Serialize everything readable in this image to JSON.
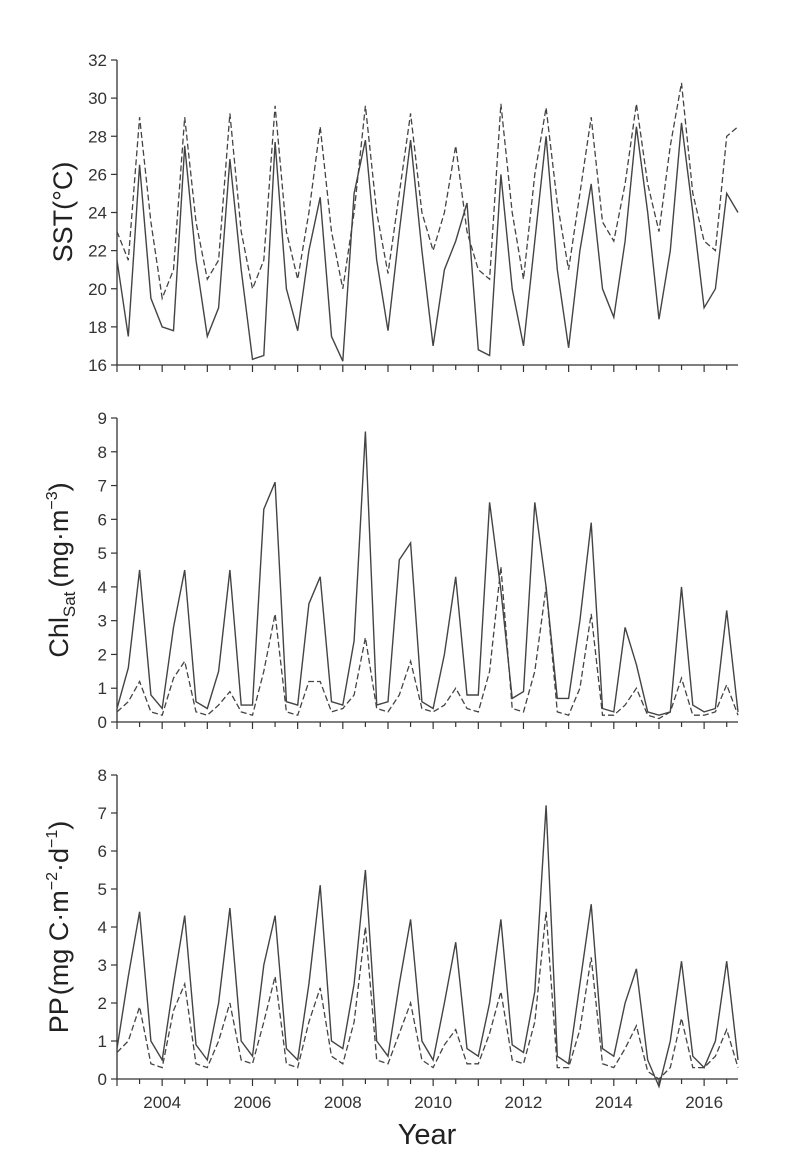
{
  "chart_data": [
    {
      "type": "line",
      "ylabel": "SST(°C)",
      "ylim": [
        16,
        32
      ],
      "yticks": [
        16,
        18,
        20,
        22,
        24,
        26,
        28,
        30,
        32
      ],
      "x_start": 2003.0,
      "x_step": 0.25,
      "series": [
        {
          "name": "solid",
          "style": "solid",
          "values": [
            21.5,
            17.5,
            26.5,
            19.5,
            18.0,
            17.8,
            27.5,
            21.5,
            17.5,
            19.0,
            26.8,
            21.0,
            16.3,
            16.5,
            27.7,
            20.0,
            17.8,
            22.0,
            24.8,
            17.5,
            16.2,
            25.0,
            27.8,
            21.5,
            17.8,
            23.0,
            27.8,
            22.0,
            17.0,
            21.0,
            22.5,
            24.5,
            16.8,
            16.5,
            26.0,
            20.0,
            17.0,
            22.5,
            28.0,
            21.0,
            16.9,
            22.0,
            25.5,
            20.0,
            18.5,
            22.5,
            28.5,
            24.0,
            18.4,
            22.0,
            28.7,
            24.0,
            19.0,
            20.0,
            25.0,
            24.0
          ]
        },
        {
          "name": "dashed",
          "style": "dashed",
          "values": [
            23.0,
            21.5,
            29.0,
            23.5,
            19.5,
            21.0,
            29.0,
            23.5,
            20.5,
            21.5,
            29.2,
            23.0,
            20.0,
            21.5,
            29.6,
            23.0,
            20.5,
            24.0,
            28.5,
            23.0,
            20.0,
            24.0,
            29.6,
            24.0,
            20.8,
            25.0,
            29.2,
            24.0,
            22.0,
            24.0,
            27.5,
            23.0,
            21.0,
            20.5,
            29.7,
            24.0,
            20.5,
            26.0,
            29.5,
            24.5,
            21.0,
            25.0,
            29.0,
            23.5,
            22.5,
            25.5,
            29.7,
            25.5,
            23.0,
            27.5,
            30.8,
            25.0,
            22.5,
            22.0,
            28.0,
            28.5
          ]
        }
      ]
    },
    {
      "type": "line",
      "ylabel_main": "Chl",
      "ylabel_sub": "Sat",
      "ylabel_unit": "(mg·m",
      "ylabel_sup": "−3",
      "ylabel_close": ")",
      "ylim": [
        0,
        9
      ],
      "yticks": [
        0,
        1,
        2,
        3,
        4,
        5,
        6,
        7,
        8,
        9
      ],
      "x_start": 2003.0,
      "x_step": 0.25,
      "series": [
        {
          "name": "solid",
          "style": "solid",
          "values": [
            0.4,
            1.6,
            4.5,
            0.8,
            0.4,
            2.8,
            4.5,
            0.6,
            0.4,
            1.5,
            4.5,
            0.5,
            0.5,
            6.3,
            7.1,
            0.6,
            0.5,
            3.5,
            4.3,
            0.6,
            0.5,
            2.4,
            8.6,
            0.5,
            0.6,
            4.8,
            5.3,
            0.6,
            0.4,
            2.0,
            4.3,
            0.8,
            0.8,
            6.5,
            3.9,
            0.7,
            0.9,
            6.5,
            4.0,
            0.7,
            0.7,
            3.0,
            5.9,
            0.4,
            0.3,
            2.8,
            1.7,
            0.3,
            0.2,
            0.3,
            4.0,
            0.5,
            0.3,
            0.4,
            3.3,
            0.3
          ]
        },
        {
          "name": "dashed",
          "style": "dashed",
          "values": [
            0.3,
            0.6,
            1.2,
            0.3,
            0.2,
            1.3,
            1.8,
            0.3,
            0.2,
            0.5,
            0.9,
            0.3,
            0.2,
            1.5,
            3.2,
            0.3,
            0.2,
            1.2,
            1.2,
            0.3,
            0.4,
            0.8,
            2.5,
            0.4,
            0.3,
            0.8,
            1.8,
            0.4,
            0.3,
            0.5,
            1.0,
            0.4,
            0.3,
            1.5,
            4.6,
            0.4,
            0.3,
            1.5,
            4.0,
            0.3,
            0.2,
            1.0,
            3.2,
            0.2,
            0.2,
            0.5,
            1.0,
            0.2,
            0.1,
            0.3,
            1.3,
            0.2,
            0.2,
            0.3,
            1.1,
            0.2
          ]
        }
      ]
    },
    {
      "type": "line",
      "ylabel_main": "PP",
      "ylabel_unit": "(mg C·m",
      "ylabel_sup1": "−2",
      "ylabel_mid": "·d",
      "ylabel_sup2": "−1",
      "ylabel_close": ")",
      "ylim": [
        0,
        8
      ],
      "yticks": [
        0,
        1,
        2,
        3,
        4,
        5,
        6,
        7,
        8
      ],
      "x_start": 2003.0,
      "x_step": 0.25,
      "series": [
        {
          "name": "solid",
          "style": "solid",
          "values": [
            0.8,
            2.7,
            4.4,
            1.0,
            0.5,
            2.5,
            4.3,
            0.9,
            0.5,
            2.0,
            4.5,
            1.0,
            0.6,
            3.0,
            4.3,
            0.8,
            0.5,
            2.5,
            5.1,
            1.0,
            0.8,
            2.5,
            5.5,
            1.0,
            0.6,
            2.5,
            4.2,
            1.0,
            0.5,
            2.0,
            3.6,
            0.8,
            0.6,
            2.0,
            4.2,
            0.9,
            0.7,
            2.3,
            7.2,
            0.6,
            0.4,
            2.5,
            4.6,
            0.8,
            0.6,
            2.0,
            2.9,
            0.5,
            -0.2,
            1.0,
            3.1,
            0.6,
            0.3,
            1.0,
            3.1,
            0.5
          ]
        },
        {
          "name": "dashed",
          "style": "dashed",
          "values": [
            0.7,
            1.0,
            1.9,
            0.4,
            0.3,
            1.8,
            2.5,
            0.4,
            0.3,
            1.0,
            2.0,
            0.5,
            0.4,
            1.5,
            2.7,
            0.4,
            0.3,
            1.5,
            2.4,
            0.6,
            0.4,
            1.5,
            4.0,
            0.5,
            0.4,
            1.2,
            2.0,
            0.5,
            0.3,
            0.9,
            1.3,
            0.4,
            0.4,
            1.2,
            2.3,
            0.5,
            0.4,
            1.5,
            4.4,
            0.3,
            0.3,
            1.3,
            3.2,
            0.4,
            0.3,
            0.8,
            1.4,
            0.2,
            0.0,
            0.3,
            1.6,
            0.3,
            0.3,
            0.6,
            1.3,
            0.3
          ]
        }
      ]
    }
  ],
  "x_axis": {
    "title": "Year",
    "range": [
      2003.0,
      2016.75
    ],
    "tick_labels": [
      "2004",
      "2006",
      "2008",
      "2010",
      "2012",
      "2014",
      "2016"
    ],
    "tick_values": [
      2004,
      2006,
      2008,
      2010,
      2012,
      2014,
      2016
    ],
    "minor_step": 0.5
  }
}
